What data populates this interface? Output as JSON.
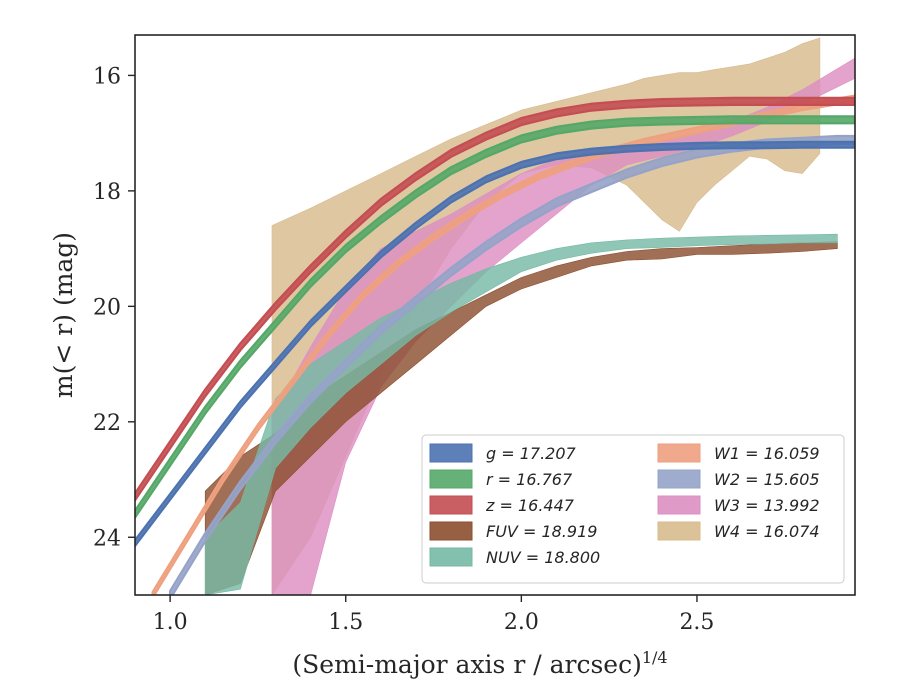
{
  "chart_data": {
    "type": "area",
    "xlabel": "(Semi-major axis r / arcsec)",
    "xlabel_sup": "1/4",
    "ylabel": "m(< r) (mag)",
    "xlim": [
      0.9,
      2.95
    ],
    "ylim": [
      25.0,
      15.3
    ],
    "y_inverted": true,
    "x_ticks": [
      1.0,
      1.5,
      2.0,
      2.5
    ],
    "x_tick_labels": [
      "1.0",
      "1.5",
      "2.0",
      "2.5"
    ],
    "y_ticks": [
      16,
      18,
      20,
      22,
      24
    ],
    "y_tick_labels": [
      "16",
      "18",
      "20",
      "22",
      "24"
    ],
    "grid": false,
    "legend_position": "lower-right",
    "series": [
      {
        "name": "g = 17.207",
        "legend_label": "g = 17.207",
        "color": "#4c72b0",
        "style": "line",
        "x": [
          0.9,
          1.0,
          1.1,
          1.2,
          1.3,
          1.4,
          1.5,
          1.6,
          1.7,
          1.8,
          1.9,
          2.0,
          2.1,
          2.2,
          2.3,
          2.4,
          2.5,
          2.6,
          2.7,
          2.8,
          2.9,
          2.95
        ],
        "y": [
          24.1,
          23.3,
          22.5,
          21.7,
          21.0,
          20.3,
          19.7,
          19.1,
          18.6,
          18.15,
          17.8,
          17.55,
          17.4,
          17.32,
          17.27,
          17.24,
          17.22,
          17.21,
          17.21,
          17.2,
          17.2,
          17.2
        ],
        "half_width": 0.05
      },
      {
        "name": "r = 16.767",
        "legend_label": "r = 16.767",
        "color": "#55a868",
        "style": "line",
        "x": [
          0.9,
          1.0,
          1.1,
          1.2,
          1.3,
          1.4,
          1.5,
          1.6,
          1.7,
          1.8,
          1.9,
          2.0,
          2.1,
          2.2,
          2.3,
          2.4,
          2.5,
          2.6,
          2.7,
          2.8,
          2.9,
          2.95
        ],
        "y": [
          23.6,
          22.7,
          21.8,
          21.0,
          20.3,
          19.6,
          19.0,
          18.5,
          18.05,
          17.65,
          17.35,
          17.1,
          16.95,
          16.86,
          16.81,
          16.79,
          16.78,
          16.77,
          16.77,
          16.77,
          16.77,
          16.77
        ],
        "half_width": 0.06
      },
      {
        "name": "z = 16.447",
        "legend_label": "z = 16.447",
        "color": "#c44e52",
        "style": "line",
        "x": [
          0.9,
          1.0,
          1.1,
          1.2,
          1.3,
          1.4,
          1.5,
          1.6,
          1.7,
          1.8,
          1.9,
          2.0,
          2.1,
          2.2,
          2.3,
          2.4,
          2.5,
          2.6,
          2.7,
          2.8,
          2.9,
          2.95
        ],
        "y": [
          23.3,
          22.4,
          21.5,
          20.7,
          20.0,
          19.35,
          18.75,
          18.2,
          17.75,
          17.35,
          17.05,
          16.8,
          16.65,
          16.55,
          16.5,
          16.47,
          16.46,
          16.45,
          16.45,
          16.45,
          16.45,
          16.45
        ],
        "half_width": 0.06
      },
      {
        "name": "FUV = 18.919",
        "legend_label": "FUV = 18.919",
        "color": "#8c4f2f",
        "style": "band",
        "x": [
          1.1,
          1.2,
          1.3,
          1.4,
          1.5,
          1.6,
          1.7,
          1.8,
          1.9,
          2.0,
          2.1,
          2.2,
          2.3,
          2.4,
          2.5,
          2.6,
          2.7,
          2.8,
          2.9
        ],
        "y_upper": [
          23.2,
          22.6,
          22.2,
          21.6,
          21.2,
          20.8,
          20.4,
          20.1,
          19.8,
          19.5,
          19.3,
          19.15,
          19.05,
          19.0,
          18.98,
          18.95,
          18.92,
          18.9,
          18.88
        ],
        "y_lower": [
          25.0,
          24.8,
          23.2,
          22.6,
          22.0,
          21.5,
          21.0,
          20.5,
          20.0,
          19.7,
          19.5,
          19.3,
          19.2,
          19.18,
          19.1,
          19.1,
          19.08,
          19.05,
          19.0
        ]
      },
      {
        "name": "NUV = 18.800",
        "legend_label": "NUV = 18.800",
        "color": "#76b9a5",
        "style": "band",
        "x": [
          1.1,
          1.2,
          1.3,
          1.4,
          1.5,
          1.6,
          1.7,
          1.8,
          1.9,
          2.0,
          2.1,
          2.2,
          2.3,
          2.4,
          2.5,
          2.6,
          2.7,
          2.8,
          2.9
        ],
        "y_upper": [
          24.0,
          23.4,
          21.6,
          21.0,
          20.6,
          20.2,
          19.9,
          19.6,
          19.35,
          19.15,
          19.0,
          18.9,
          18.85,
          18.82,
          18.8,
          18.78,
          18.77,
          18.76,
          18.75
        ],
        "y_lower": [
          25.0,
          24.9,
          22.8,
          22.1,
          21.5,
          21.0,
          20.5,
          20.1,
          19.75,
          19.4,
          19.2,
          19.08,
          19.0,
          18.98,
          18.95,
          18.93,
          18.92,
          18.9,
          18.9
        ]
      },
      {
        "name": "W1 = 16.059",
        "legend_label": "W1 = 16.059",
        "color": "#eea07f",
        "style": "line",
        "x": [
          0.95,
          1.05,
          1.15,
          1.25,
          1.35,
          1.45,
          1.55,
          1.65,
          1.75,
          1.85,
          1.95,
          2.05,
          2.2,
          2.35,
          2.5,
          2.65,
          2.8,
          2.95
        ],
        "y": [
          25.0,
          24.0,
          23.0,
          22.1,
          21.3,
          20.5,
          19.8,
          19.25,
          18.8,
          18.4,
          18.05,
          17.75,
          17.4,
          17.15,
          16.95,
          16.75,
          16.55,
          16.4
        ],
        "half_width": 0.05
      },
      {
        "name": "W2 = 15.605",
        "legend_label": "W2 = 15.605",
        "color": "#96a3c8",
        "style": "line",
        "x": [
          1.0,
          1.1,
          1.2,
          1.3,
          1.4,
          1.5,
          1.6,
          1.7,
          1.8,
          1.9,
          2.0,
          2.1,
          2.2,
          2.3,
          2.4,
          2.5,
          2.6,
          2.7,
          2.8,
          2.9,
          2.95
        ],
        "y": [
          25.0,
          24.0,
          23.1,
          22.3,
          21.6,
          21.0,
          20.4,
          19.9,
          19.4,
          18.95,
          18.55,
          18.2,
          17.95,
          17.7,
          17.5,
          17.35,
          17.25,
          17.18,
          17.15,
          17.12,
          17.12
        ],
        "half_width": 0.07
      },
      {
        "name": "W3 = 13.992",
        "legend_label": "W3 = 13.992",
        "color": "#dd8fc2",
        "style": "band",
        "x": [
          1.29,
          1.4,
          1.5,
          1.6,
          1.7,
          1.8,
          1.9,
          2.0,
          2.1,
          2.2,
          2.3,
          2.4,
          2.5,
          2.6,
          2.7,
          2.8,
          2.95
        ],
        "y_upper": [
          21.9,
          20.7,
          19.7,
          19.0,
          18.7,
          18.4,
          18.05,
          17.7,
          17.45,
          17.3,
          17.25,
          17.15,
          17.0,
          16.8,
          16.55,
          16.25,
          15.7
        ],
        "y_lower": [
          25.0,
          25.0,
          22.7,
          21.4,
          20.6,
          20.0,
          19.4,
          18.9,
          18.4,
          17.9,
          17.55,
          17.4,
          17.25,
          17.05,
          16.8,
          16.5,
          16.05
        ]
      },
      {
        "name": "W4 = 16.074",
        "legend_label": "W4 = 16.074",
        "color": "#d8bb8e",
        "style": "band",
        "x": [
          1.29,
          1.4,
          1.5,
          1.6,
          1.7,
          1.8,
          1.9,
          2.0,
          2.1,
          2.2,
          2.3,
          2.35,
          2.4,
          2.45,
          2.5,
          2.55,
          2.6,
          2.65,
          2.7,
          2.75,
          2.8,
          2.85
        ],
        "y_upper": [
          18.6,
          18.3,
          18.0,
          17.7,
          17.4,
          17.1,
          16.85,
          16.6,
          16.45,
          16.3,
          16.15,
          16.05,
          16.0,
          15.95,
          15.95,
          15.9,
          15.85,
          15.8,
          15.7,
          15.6,
          15.45,
          15.35
        ],
        "y_lower": [
          25.0,
          24.0,
          22.6,
          21.2,
          20.0,
          19.0,
          18.2,
          17.7,
          17.55,
          17.6,
          17.9,
          18.2,
          18.5,
          18.7,
          18.2,
          17.9,
          17.65,
          17.4,
          17.45,
          17.65,
          17.7,
          17.35
        ]
      }
    ]
  }
}
